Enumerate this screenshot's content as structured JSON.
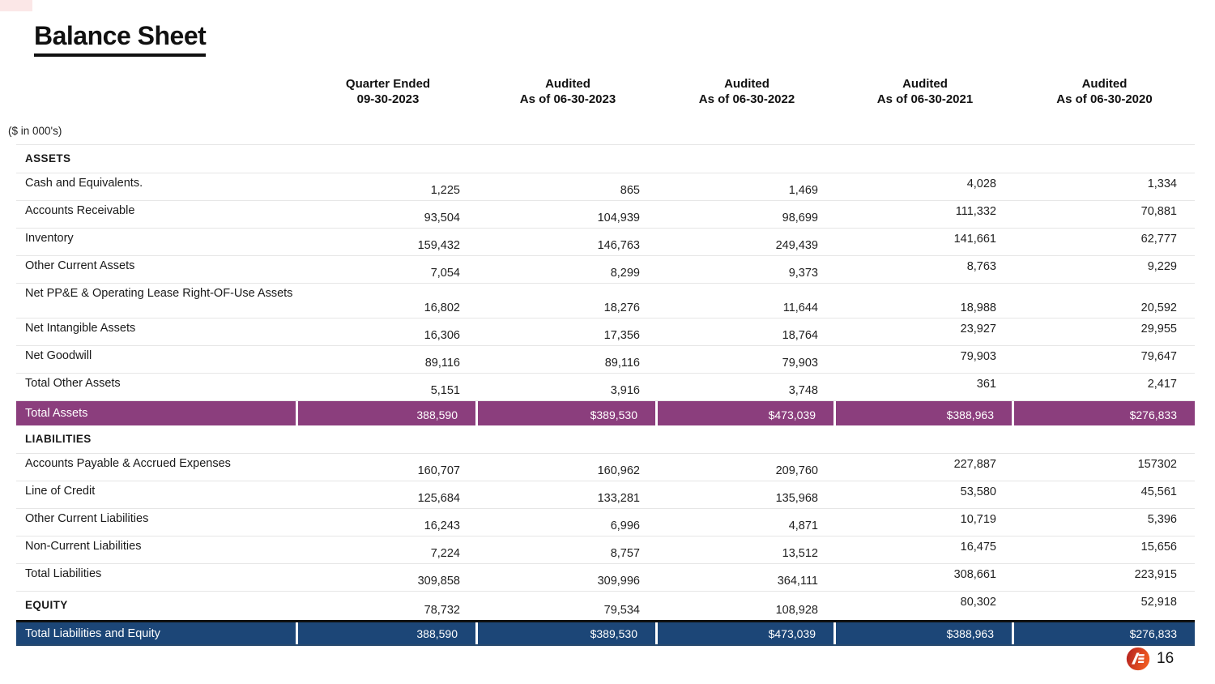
{
  "slide": {
    "title": "Balance Sheet",
    "units_note": "($ in 000's)",
    "page_number": "16",
    "logo_text": "AE"
  },
  "colors": {
    "total_assets_row": "#8B3E7D",
    "total_liabilities_equity_row": "#1C4677",
    "logo_red_dark": "#B22020",
    "logo_red_light": "#EF5A22",
    "corner_accent": "#FBE7E7"
  },
  "table": {
    "column_headers": [
      {
        "line1": "Quarter Ended",
        "line2": "09-30-2023"
      },
      {
        "line1": "Audited",
        "line2": "As of 06-30-2023"
      },
      {
        "line1": "Audited",
        "line2": "As of 06-30-2022"
      },
      {
        "line1": "Audited",
        "line2": "As of 06-30-2021"
      },
      {
        "line1": "Audited",
        "line2": "As of 06-30-2020"
      }
    ],
    "rows": [
      {
        "type": "section",
        "label": "ASSETS"
      },
      {
        "type": "item",
        "label": "Cash and Equivalents.",
        "values": [
          "1,225",
          "865",
          "1,469",
          "4,028",
          "1,334"
        ]
      },
      {
        "type": "item",
        "label": "Accounts Receivable",
        "values": [
          "93,504",
          "104,939",
          "98,699",
          "111,332",
          "70,881"
        ]
      },
      {
        "type": "item",
        "label": "Inventory",
        "values": [
          "159,432",
          "146,763",
          "249,439",
          "141,661",
          "62,777"
        ]
      },
      {
        "type": "item",
        "label": "Other Current Assets",
        "values": [
          "7,054",
          "8,299",
          "9,373",
          "8,763",
          "9,229"
        ]
      },
      {
        "type": "item",
        "label": "Net PP&E & Operating Lease Right-OF-Use Assets",
        "values": [
          "16,802",
          "18,276",
          "11,644",
          "18,988",
          "20,592"
        ]
      },
      {
        "type": "item",
        "label": "Net Intangible Assets",
        "values": [
          "16,306",
          "17,356",
          "18,764",
          "23,927",
          "29,955"
        ]
      },
      {
        "type": "item",
        "label": "Net Goodwill",
        "values": [
          "89,116",
          "89,116",
          "79,903",
          "79,903",
          "79,647"
        ]
      },
      {
        "type": "item",
        "label": "Total Other Assets",
        "values": [
          "5,151",
          "3,916",
          "3,748",
          "361",
          "2,417"
        ]
      },
      {
        "type": "total",
        "style": "assets",
        "label": "Total Assets",
        "values": [
          "388,590",
          "$389,530",
          "$473,039",
          "$388,963",
          "$276,833"
        ]
      },
      {
        "type": "section",
        "label": "LIABILITIES"
      },
      {
        "type": "item",
        "label": "Accounts Payable & Accrued Expenses",
        "values": [
          "160,707",
          "160,962",
          "209,760",
          "227,887",
          "157302"
        ]
      },
      {
        "type": "item",
        "label": "Line of Credit",
        "values": [
          "125,684",
          "133,281",
          "135,968",
          "53,580",
          "45,561"
        ]
      },
      {
        "type": "item",
        "label": "Other Current Liabilities",
        "values": [
          "16,243",
          "6,996",
          "4,871",
          "10,719",
          "5,396"
        ]
      },
      {
        "type": "item",
        "label": "Non-Current Liabilities",
        "values": [
          "7,224",
          "8,757",
          "13,512",
          "16,475",
          "15,656"
        ]
      },
      {
        "type": "item",
        "label": "Total Liabilities",
        "values": [
          "309,858",
          "309,996",
          "364,111",
          "308,661",
          "223,915"
        ]
      },
      {
        "type": "equity",
        "label": "EQUITY",
        "values": [
          "78,732",
          "79,534",
          "108,928",
          "80,302",
          "52,918"
        ]
      },
      {
        "type": "total",
        "style": "liabilities",
        "label": "Total Liabilities and Equity",
        "values": [
          "388,590",
          "$389,530",
          "$473,039",
          "$388,963",
          "$276,833"
        ]
      }
    ]
  }
}
